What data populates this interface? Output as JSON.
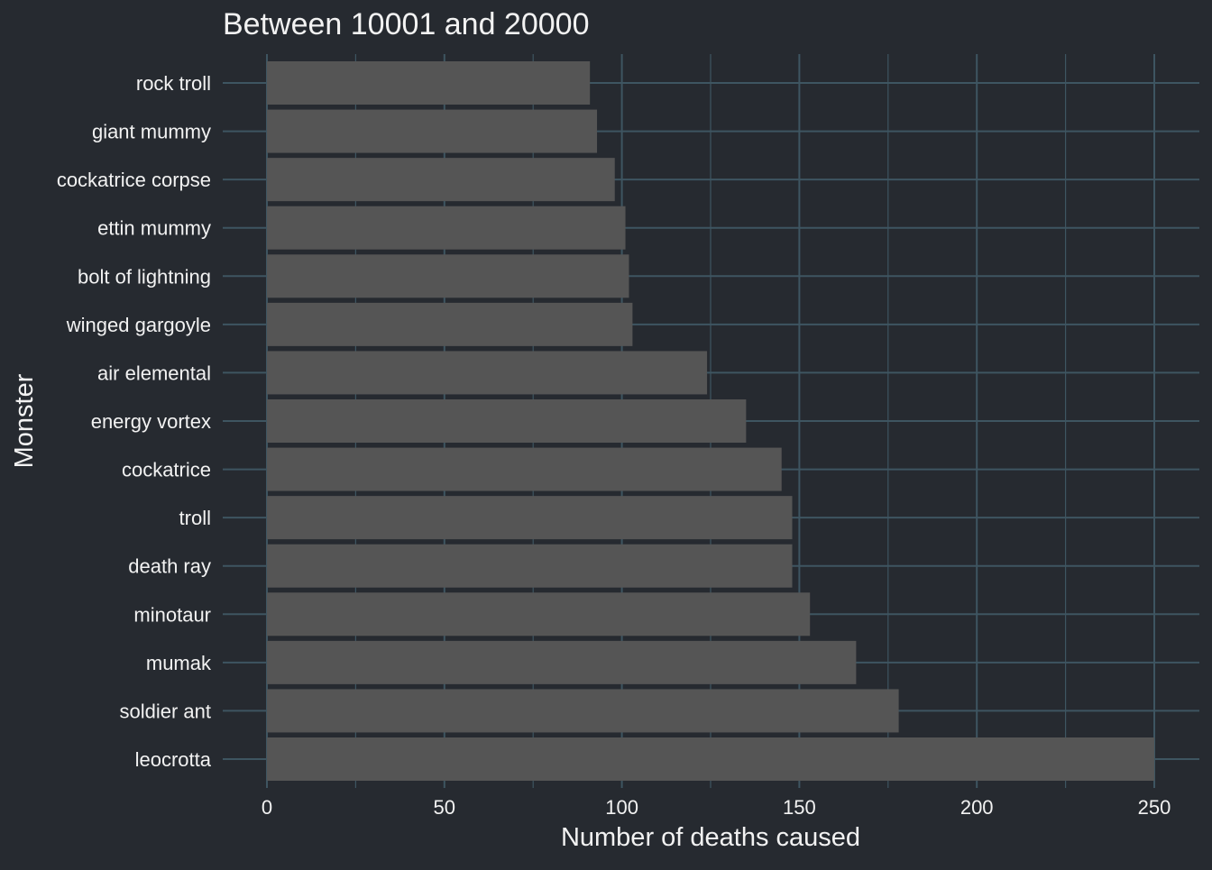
{
  "chart_data": {
    "type": "bar",
    "orientation": "horizontal",
    "title": "Between 10001 and 20000",
    "xlabel": "Number of deaths caused",
    "ylabel": "Monster",
    "xlim": [
      0,
      250
    ],
    "x_ticks": [
      0,
      50,
      100,
      150,
      200,
      250
    ],
    "grid": true,
    "categories": [
      "rock troll",
      "giant mummy",
      "cockatrice corpse",
      "ettin mummy",
      "bolt of lightning",
      "winged gargoyle",
      "air elemental",
      "energy vortex",
      "cockatrice",
      "troll",
      "death ray",
      "minotaur",
      "mumak",
      "soldier ant",
      "leocrotta"
    ],
    "values": [
      91,
      93,
      98,
      101,
      102,
      103,
      124,
      135,
      145,
      148,
      148,
      153,
      166,
      178,
      250
    ]
  },
  "colors": {
    "background": "#262a30",
    "grid": "#3e5561",
    "bar": "#555555",
    "text": "#f2f2f2"
  }
}
